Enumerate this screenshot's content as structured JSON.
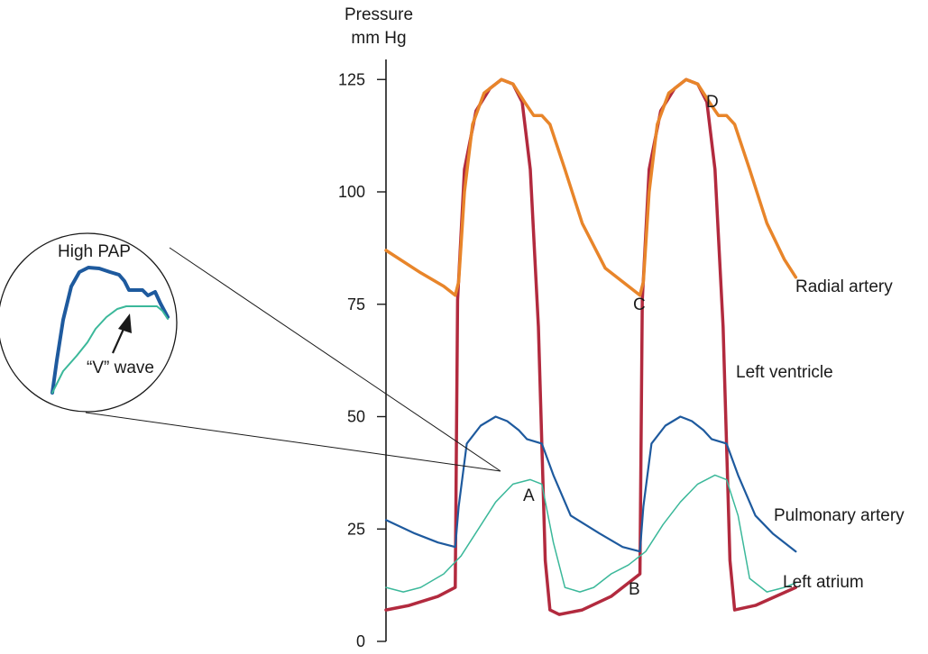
{
  "chart_data": {
    "type": "line",
    "ylabel_line1": "Pressure",
    "ylabel_line2": "mm Hg",
    "ylim": [
      0,
      125
    ],
    "yticks": [
      "125",
      "100",
      "75",
      "50",
      "25",
      "0"
    ],
    "grid": false,
    "series": [
      {
        "name": "Radial artery",
        "color": "#e8852a",
        "values": [
          [
            0,
            87
          ],
          [
            0.3,
            82
          ],
          [
            0.5,
            79
          ],
          [
            0.6,
            77
          ],
          [
            0.63,
            80
          ],
          [
            0.68,
            100
          ],
          [
            0.75,
            115
          ],
          [
            0.85,
            122
          ],
          [
            1.0,
            125
          ],
          [
            1.1,
            124
          ],
          [
            1.2,
            120
          ],
          [
            1.28,
            117
          ],
          [
            1.35,
            117
          ],
          [
            1.42,
            115
          ],
          [
            1.55,
            105
          ],
          [
            1.7,
            93
          ],
          [
            1.9,
            83
          ],
          [
            2.1,
            79
          ],
          [
            2.2,
            77
          ],
          [
            2.23,
            80
          ],
          [
            2.28,
            100
          ],
          [
            2.35,
            115
          ],
          [
            2.45,
            122
          ],
          [
            2.6,
            125
          ],
          [
            2.7,
            124
          ],
          [
            2.8,
            120
          ],
          [
            2.88,
            117
          ],
          [
            2.95,
            117
          ],
          [
            3.02,
            115
          ],
          [
            3.15,
            105
          ],
          [
            3.3,
            93
          ],
          [
            3.45,
            85
          ],
          [
            3.55,
            81
          ]
        ]
      },
      {
        "name": "Left ventricle",
        "color": "#b22a3e",
        "values": [
          [
            0,
            7
          ],
          [
            0.2,
            8
          ],
          [
            0.45,
            10
          ],
          [
            0.6,
            12
          ],
          [
            0.62,
            76
          ],
          [
            0.68,
            105
          ],
          [
            0.78,
            118
          ],
          [
            0.9,
            123
          ],
          [
            1.0,
            125
          ],
          [
            1.1,
            124
          ],
          [
            1.18,
            120
          ],
          [
            1.25,
            105
          ],
          [
            1.32,
            70
          ],
          [
            1.38,
            18
          ],
          [
            1.42,
            7
          ],
          [
            1.5,
            6
          ],
          [
            1.7,
            7
          ],
          [
            1.95,
            10
          ],
          [
            2.2,
            15
          ],
          [
            2.22,
            76
          ],
          [
            2.28,
            105
          ],
          [
            2.38,
            118
          ],
          [
            2.5,
            123
          ],
          [
            2.6,
            125
          ],
          [
            2.7,
            124
          ],
          [
            2.78,
            120
          ],
          [
            2.85,
            105
          ],
          [
            2.92,
            70
          ],
          [
            2.98,
            18
          ],
          [
            3.02,
            7
          ],
          [
            3.2,
            8
          ],
          [
            3.55,
            12
          ]
        ]
      },
      {
        "name": "Pulmonary artery",
        "color": "#1e5a9e",
        "values": [
          [
            0,
            27
          ],
          [
            0.25,
            24
          ],
          [
            0.45,
            22
          ],
          [
            0.6,
            21
          ],
          [
            0.63,
            30
          ],
          [
            0.7,
            44
          ],
          [
            0.82,
            48
          ],
          [
            0.95,
            50
          ],
          [
            1.05,
            49
          ],
          [
            1.15,
            47
          ],
          [
            1.22,
            45
          ],
          [
            1.35,
            44
          ],
          [
            1.45,
            37
          ],
          [
            1.6,
            28
          ],
          [
            1.85,
            24
          ],
          [
            2.05,
            21
          ],
          [
            2.2,
            20
          ],
          [
            2.23,
            30
          ],
          [
            2.3,
            44
          ],
          [
            2.42,
            48
          ],
          [
            2.55,
            50
          ],
          [
            2.65,
            49
          ],
          [
            2.75,
            47
          ],
          [
            2.82,
            45
          ],
          [
            2.95,
            44
          ],
          [
            3.05,
            37
          ],
          [
            3.2,
            28
          ],
          [
            3.35,
            24
          ],
          [
            3.55,
            20
          ]
        ]
      },
      {
        "name": "Left atrium",
        "color": "#3bb89a",
        "values": [
          [
            0,
            12
          ],
          [
            0.15,
            11
          ],
          [
            0.3,
            12
          ],
          [
            0.5,
            15
          ],
          [
            0.65,
            19
          ],
          [
            0.8,
            25
          ],
          [
            0.95,
            31
          ],
          [
            1.1,
            35
          ],
          [
            1.25,
            36
          ],
          [
            1.35,
            35
          ],
          [
            1.45,
            22
          ],
          [
            1.55,
            12
          ],
          [
            1.68,
            11
          ],
          [
            1.8,
            12
          ],
          [
            1.95,
            15
          ],
          [
            2.1,
            17
          ],
          [
            2.25,
            20
          ],
          [
            2.4,
            26
          ],
          [
            2.55,
            31
          ],
          [
            2.7,
            35
          ],
          [
            2.85,
            37
          ],
          [
            2.95,
            36
          ],
          [
            3.05,
            28
          ],
          [
            3.15,
            14
          ],
          [
            3.3,
            11
          ],
          [
            3.45,
            12
          ],
          [
            3.55,
            13
          ]
        ]
      }
    ],
    "annotations": [
      "A",
      "B",
      "C",
      "D"
    ],
    "inset": {
      "title": "High PAP",
      "arrow_label": "“V” wave"
    }
  }
}
